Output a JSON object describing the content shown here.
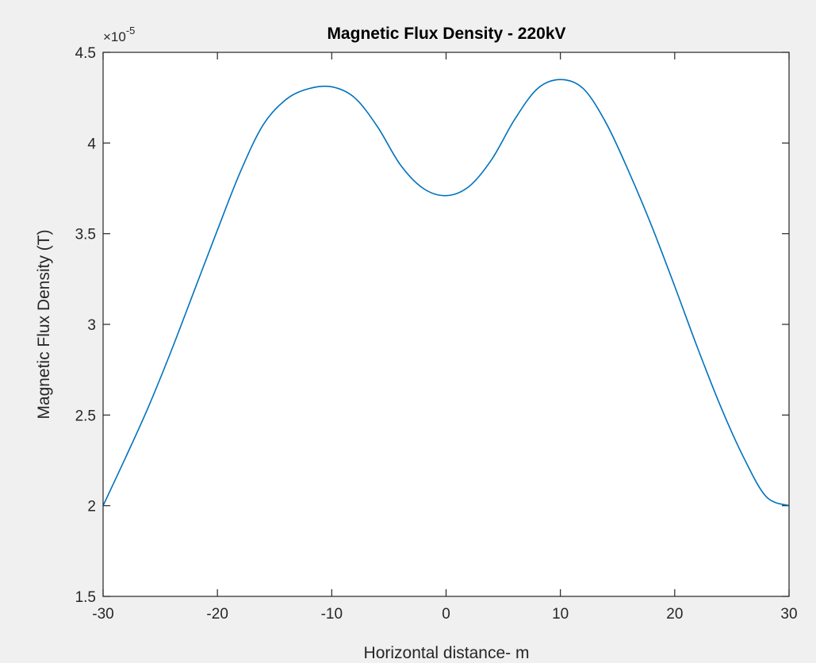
{
  "chart_data": {
    "type": "line",
    "title": "Magnetic Flux Density - 220kV",
    "xlabel": "Horizontal distance- m",
    "ylabel": "Magnetic Flux Density (T)",
    "xlim": [
      -30,
      30
    ],
    "ylim": [
      1.5,
      4.5
    ],
    "y_scale_multiplier": "×10",
    "y_scale_exponent": "-5",
    "xticks": [
      -30,
      -20,
      -10,
      0,
      10,
      20,
      30
    ],
    "xtick_labels": [
      "-30",
      "-20",
      "-10",
      "0",
      "10",
      "20",
      "30"
    ],
    "yticks": [
      1.5,
      2,
      2.5,
      3,
      3.5,
      4,
      4.5
    ],
    "ytick_labels": [
      "1.5",
      "2",
      "2.5",
      "3",
      "3.5",
      "4",
      "4.5"
    ],
    "grid": false,
    "line_color": "#0072bd",
    "background_color": "#f0f0f0",
    "axes_color": "#ffffff",
    "series": [
      {
        "x": [
          -30,
          -28,
          -26,
          -24,
          -22,
          -20,
          -18,
          -16,
          -14,
          -12,
          -10,
          -8,
          -6,
          -4,
          -2,
          0,
          2,
          4,
          6,
          8,
          10,
          12,
          14,
          16,
          18,
          20,
          22,
          24,
          26,
          28,
          30
        ],
        "y": [
          2.0,
          2.27,
          2.55,
          2.86,
          3.19,
          3.52,
          3.84,
          4.1,
          4.24,
          4.3,
          4.31,
          4.25,
          4.09,
          3.88,
          3.75,
          3.71,
          3.76,
          3.91,
          4.13,
          4.3,
          4.35,
          4.3,
          4.11,
          3.84,
          3.54,
          3.21,
          2.87,
          2.55,
          2.27,
          2.05,
          2.0
        ]
      }
    ]
  }
}
